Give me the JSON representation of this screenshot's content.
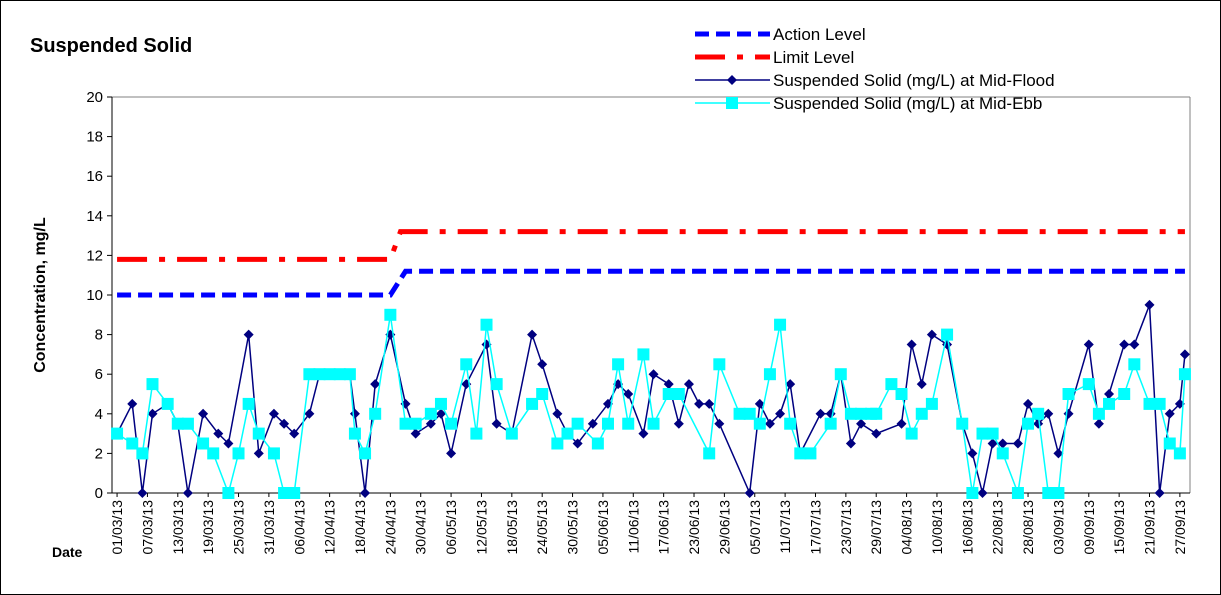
{
  "chart_data": {
    "type": "line",
    "title": "Suspended Solid",
    "ylabel": "Concentration, mg/L",
    "xlabel": "Date",
    "ylim": [
      0,
      20
    ],
    "yticks": [
      0,
      2,
      4,
      6,
      8,
      10,
      12,
      14,
      16,
      18,
      20
    ],
    "xlim": [
      "28/02/13",
      "29/09/13"
    ],
    "xticks": [
      "01/03/13",
      "07/03/13",
      "13/03/13",
      "19/03/13",
      "25/03/13",
      "31/03/13",
      "06/04/13",
      "12/04/13",
      "18/04/13",
      "24/04/13",
      "30/04/13",
      "06/05/13",
      "12/05/13",
      "18/05/13",
      "24/05/13",
      "30/05/13",
      "05/06/13",
      "11/06/13",
      "17/06/13",
      "23/06/13",
      "29/06/13",
      "05/07/13",
      "11/07/13",
      "17/07/13",
      "23/07/13",
      "29/07/13",
      "04/08/13",
      "10/08/13",
      "16/08/13",
      "22/08/13",
      "28/08/13",
      "03/09/13",
      "09/09/13",
      "15/09/13",
      "21/09/13",
      "27/09/13"
    ],
    "legend": "top-right",
    "series": [
      {
        "name": "Action Level",
        "color": "#0000ff",
        "style": "dashed",
        "x": [
          "01/03/13",
          "24/04/13",
          "27/04/13",
          "28/09/13"
        ],
        "values": [
          10,
          10,
          11.2,
          11.2
        ]
      },
      {
        "name": "Limit Level",
        "color": "#ff0000",
        "style": "dash-dot",
        "x": [
          "01/03/13",
          "24/04/13",
          "26/04/13",
          "28/09/13"
        ],
        "values": [
          11.8,
          11.8,
          13.2,
          13.2
        ]
      },
      {
        "name": "Suspended Solid (mg/L) at Mid-Flood",
        "color": "#000080",
        "style": "solid",
        "marker": "diamond",
        "x": [
          "01/03/13",
          "04/03/13",
          "06/03/13",
          "08/03/13",
          "11/03/13",
          "13/03/13",
          "15/03/13",
          "18/03/13",
          "21/03/13",
          "23/03/13",
          "27/03/13",
          "29/03/13",
          "01/04/13",
          "03/04/13",
          "05/04/13",
          "08/04/13",
          "10/04/13",
          "12/04/13",
          "14/04/13",
          "16/04/13",
          "17/04/13",
          "19/04/13",
          "21/04/13",
          "24/04/13",
          "27/04/13",
          "29/04/13",
          "02/05/13",
          "04/05/13",
          "06/05/13",
          "09/05/13",
          "13/05/13",
          "15/05/13",
          "18/05/13",
          "22/05/13",
          "24/05/13",
          "27/05/13",
          "29/05/13",
          "31/05/13",
          "03/06/13",
          "06/06/13",
          "08/06/13",
          "10/06/13",
          "13/06/13",
          "15/06/13",
          "18/06/13",
          "20/06/13",
          "22/06/13",
          "24/06/13",
          "26/06/13",
          "28/06/13",
          "04/07/13",
          "06/07/13",
          "08/07/13",
          "10/07/13",
          "12/07/13",
          "14/07/13",
          "18/07/13",
          "20/07/13",
          "22/07/13",
          "24/07/13",
          "26/07/13",
          "29/07/13",
          "03/08/13",
          "05/08/13",
          "07/08/13",
          "09/08/13",
          "12/08/13",
          "15/08/13",
          "17/08/13",
          "19/08/13",
          "21/08/13",
          "23/08/13",
          "26/08/13",
          "28/08/13",
          "30/08/13",
          "01/09/13",
          "03/09/13",
          "05/09/13",
          "09/09/13",
          "11/09/13",
          "13/09/13",
          "16/09/13",
          "18/09/13",
          "21/09/13",
          "23/09/13",
          "25/09/13",
          "27/09/13",
          "28/09/13"
        ],
        "values": [
          3,
          4.5,
          0,
          4,
          4.5,
          3.5,
          0,
          4,
          3,
          2.5,
          8,
          2,
          4,
          3.5,
          3,
          4,
          6,
          6,
          6,
          6,
          4,
          0,
          5.5,
          8,
          4.5,
          3,
          3.5,
          4,
          2,
          5.5,
          7.5,
          3.5,
          3,
          8,
          6.5,
          4,
          3,
          2.5,
          3.5,
          4.5,
          5.5,
          5,
          3,
          6,
          5.5,
          3.5,
          5.5,
          4.5,
          4.5,
          3.5,
          0,
          4.5,
          3.5,
          4,
          5.5,
          2,
          4,
          4,
          6,
          2.5,
          3.5,
          3,
          3.5,
          7.5,
          5.5,
          8,
          7.5,
          3.5,
          2,
          0,
          2.5,
          2.5,
          2.5,
          4.5,
          3.5,
          4,
          2,
          4,
          7.5,
          3.5,
          5,
          7.5,
          7.5,
          9.5,
          0,
          4,
          4.5,
          7
        ]
      },
      {
        "name": "Suspended Solid (mg/L) at Mid-Ebb",
        "color": "#00ffff",
        "style": "solid",
        "marker": "square",
        "x": [
          "01/03/13",
          "04/03/13",
          "06/03/13",
          "08/03/13",
          "11/03/13",
          "13/03/13",
          "15/03/13",
          "18/03/13",
          "20/03/13",
          "23/03/13",
          "25/03/13",
          "27/03/13",
          "29/03/13",
          "01/04/13",
          "03/04/13",
          "05/04/13",
          "08/04/13",
          "10/04/13",
          "12/04/13",
          "14/04/13",
          "16/04/13",
          "17/04/13",
          "19/04/13",
          "21/04/13",
          "24/04/13",
          "27/04/13",
          "29/04/13",
          "02/05/13",
          "04/05/13",
          "06/05/13",
          "09/05/13",
          "11/05/13",
          "13/05/13",
          "15/05/13",
          "18/05/13",
          "22/05/13",
          "24/05/13",
          "27/05/13",
          "29/05/13",
          "31/05/13",
          "04/06/13",
          "06/06/13",
          "08/06/13",
          "10/06/13",
          "13/06/13",
          "15/06/13",
          "18/06/13",
          "20/06/13",
          "26/06/13",
          "28/06/13",
          "02/07/13",
          "04/07/13",
          "06/07/13",
          "08/07/13",
          "10/07/13",
          "12/07/13",
          "14/07/13",
          "16/07/13",
          "20/07/13",
          "22/07/13",
          "24/07/13",
          "26/07/13",
          "28/07/13",
          "29/07/13",
          "01/08/13",
          "03/08/13",
          "05/08/13",
          "07/08/13",
          "09/08/13",
          "12/08/13",
          "15/08/13",
          "17/08/13",
          "19/08/13",
          "21/08/13",
          "23/08/13",
          "26/08/13",
          "28/08/13",
          "30/08/13",
          "01/09/13",
          "03/09/13",
          "05/09/13",
          "09/09/13",
          "11/09/13",
          "13/09/13",
          "16/09/13",
          "18/09/13",
          "21/09/13",
          "23/09/13",
          "25/09/13",
          "27/09/13",
          "28/09/13"
        ],
        "values": [
          3,
          2.5,
          2,
          5.5,
          4.5,
          3.5,
          3.5,
          2.5,
          2,
          0,
          2,
          4.5,
          3,
          2,
          0,
          0,
          6,
          6,
          6,
          6,
          6,
          3,
          2,
          4,
          9,
          3.5,
          3.5,
          4,
          4.5,
          3.5,
          6.5,
          3,
          8.5,
          5.5,
          3,
          4.5,
          5,
          2.5,
          3,
          3.5,
          2.5,
          3.5,
          6.5,
          3.5,
          7,
          3.5,
          5,
          5,
          2,
          6.5,
          4,
          4,
          3.5,
          6,
          8.5,
          3.5,
          2,
          2,
          3.5,
          6,
          4,
          4,
          4,
          4,
          5.5,
          5,
          3,
          4,
          4.5,
          8,
          3.5,
          0,
          3,
          3,
          2,
          0,
          3.5,
          4,
          0,
          0,
          5,
          5.5,
          4,
          4.5,
          5,
          6.5,
          4.5,
          4.5,
          2.5,
          2,
          6
        ]
      }
    ]
  }
}
